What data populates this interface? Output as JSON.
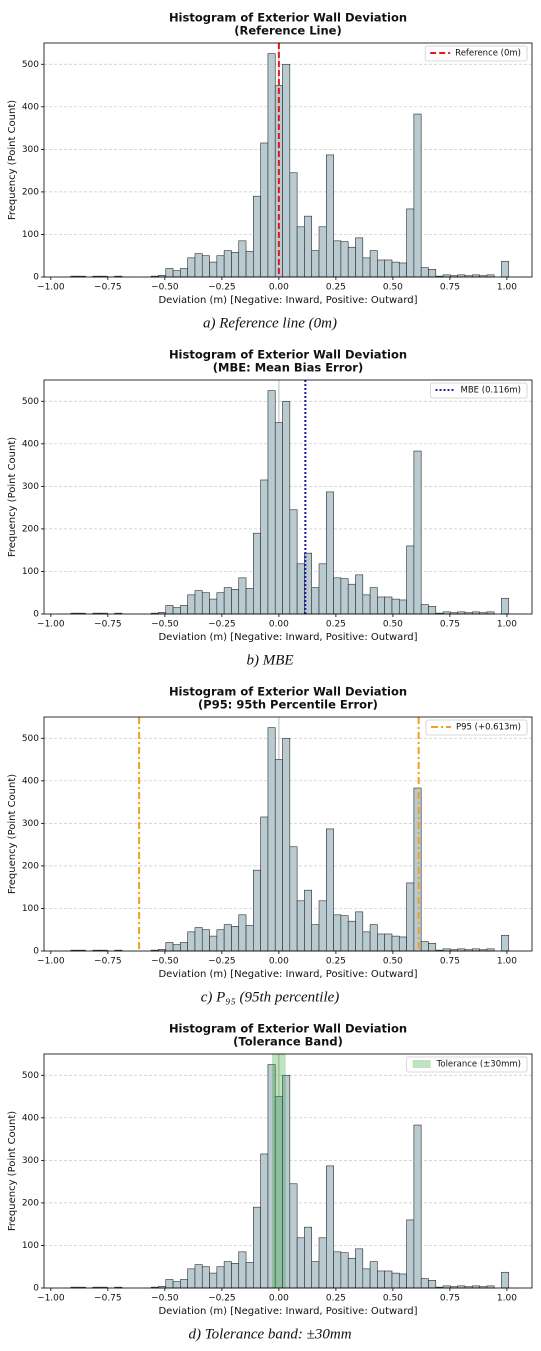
{
  "chart_data": [
    {
      "type": "histogram",
      "title": "Histogram of Exterior Wall Deviation",
      "subtitle": "(Reference Line)",
      "x_label": "Deviation (m) [Negative: Inward, Positive: Outward]",
      "y_label": "Frequency (Point Count)",
      "caption": "a)  Reference  line  (0m)",
      "bins": [
        -0.944,
        -0.912,
        -0.88,
        -0.848,
        -0.816,
        -0.784,
        -0.752,
        -0.72,
        -0.688,
        -0.656,
        -0.624,
        -0.592,
        -0.56,
        -0.528,
        -0.496,
        -0.464,
        -0.432,
        -0.4,
        -0.368,
        -0.336,
        -0.304,
        -0.272,
        -0.24,
        -0.208,
        -0.176,
        -0.144,
        -0.112,
        -0.08,
        -0.048,
        -0.016,
        0.016,
        0.048,
        0.08,
        0.112,
        0.144,
        0.176,
        0.208,
        0.24,
        0.272,
        0.304,
        0.336,
        0.368,
        0.4,
        0.432,
        0.464,
        0.496,
        0.528,
        0.56,
        0.592,
        0.624,
        0.656,
        0.688,
        0.72,
        0.752,
        0.784,
        0.816,
        0.848,
        0.88,
        0.912,
        0.944,
        0.976,
        1.008
      ],
      "values": [
        0,
        2,
        2,
        0,
        2,
        2,
        0,
        2,
        0,
        0,
        0,
        0,
        2,
        4,
        20,
        15,
        20,
        45,
        55,
        50,
        35,
        50,
        62,
        58,
        85,
        60,
        190,
        315,
        525,
        450,
        500,
        245,
        118,
        143,
        62,
        118,
        287,
        85,
        83,
        70,
        92,
        45,
        62,
        40,
        40,
        35,
        33,
        160,
        383,
        22,
        18,
        2,
        5,
        3,
        5,
        3,
        5,
        3,
        5,
        0,
        37
      ],
      "color": "#b9cbd1",
      "zero_line": 0,
      "xlim": [
        -1.03,
        1.11
      ],
      "ylim": [
        0,
        550
      ],
      "xticks": [
        {
          "value": -1,
          "label": "−1.00"
        },
        {
          "value": -0.75,
          "label": "−0.75"
        },
        {
          "value": -0.5,
          "label": "−0.50"
        },
        {
          "value": -0.25,
          "label": "−0.25"
        },
        {
          "value": 0,
          "label": "0.00"
        },
        {
          "value": 0.25,
          "label": "0.25"
        },
        {
          "value": 0.5,
          "label": "0.50"
        },
        {
          "value": 0.75,
          "label": "0.75"
        },
        {
          "value": 1,
          "label": "1.00"
        }
      ],
      "yticks": [
        0,
        100,
        200,
        300,
        400,
        500
      ],
      "grid": "y",
      "legend": "upper right",
      "overlay": {
        "kind": "vline",
        "x": [
          0
        ],
        "label": "Reference (0m)",
        "color": "#e31a1c",
        "dash": "dashed"
      }
    },
    {
      "type": "histogram",
      "title": "Histogram of Exterior Wall Deviation",
      "subtitle": "(MBE: Mean Bias Error)",
      "x_label": "Deviation (m) [Negative: Inward, Positive: Outward]",
      "y_label": "Frequency (Point Count)",
      "caption": "b)  MBE",
      "bins": [
        -0.944,
        -0.912,
        -0.88,
        -0.848,
        -0.816,
        -0.784,
        -0.752,
        -0.72,
        -0.688,
        -0.656,
        -0.624,
        -0.592,
        -0.56,
        -0.528,
        -0.496,
        -0.464,
        -0.432,
        -0.4,
        -0.368,
        -0.336,
        -0.304,
        -0.272,
        -0.24,
        -0.208,
        -0.176,
        -0.144,
        -0.112,
        -0.08,
        -0.048,
        -0.016,
        0.016,
        0.048,
        0.08,
        0.112,
        0.144,
        0.176,
        0.208,
        0.24,
        0.272,
        0.304,
        0.336,
        0.368,
        0.4,
        0.432,
        0.464,
        0.496,
        0.528,
        0.56,
        0.592,
        0.624,
        0.656,
        0.688,
        0.72,
        0.752,
        0.784,
        0.816,
        0.848,
        0.88,
        0.912,
        0.944,
        0.976,
        1.008
      ],
      "values": [
        0,
        2,
        2,
        0,
        2,
        2,
        0,
        2,
        0,
        0,
        0,
        0,
        2,
        4,
        20,
        15,
        20,
        45,
        55,
        50,
        35,
        50,
        62,
        58,
        85,
        60,
        190,
        315,
        525,
        450,
        500,
        245,
        118,
        143,
        62,
        118,
        287,
        85,
        83,
        70,
        92,
        45,
        62,
        40,
        40,
        35,
        33,
        160,
        383,
        22,
        18,
        2,
        5,
        3,
        5,
        3,
        5,
        3,
        5,
        0,
        37
      ],
      "color": "#b9cbd1",
      "zero_line": 0,
      "xlim": [
        -1.03,
        1.11
      ],
      "ylim": [
        0,
        550
      ],
      "xticks": [
        {
          "value": -1,
          "label": "−1.00"
        },
        {
          "value": -0.75,
          "label": "−0.75"
        },
        {
          "value": -0.5,
          "label": "−0.50"
        },
        {
          "value": -0.25,
          "label": "−0.25"
        },
        {
          "value": 0,
          "label": "0.00"
        },
        {
          "value": 0.25,
          "label": "0.25"
        },
        {
          "value": 0.5,
          "label": "0.50"
        },
        {
          "value": 0.75,
          "label": "0.75"
        },
        {
          "value": 1,
          "label": "1.00"
        }
      ],
      "yticks": [
        0,
        100,
        200,
        300,
        400,
        500
      ],
      "grid": "y",
      "legend": "upper right",
      "overlay": {
        "kind": "vline",
        "x": [
          0.116
        ],
        "label": "MBE (0.116m)",
        "color": "#1f1fa8",
        "dash": "dotted"
      }
    },
    {
      "type": "histogram",
      "title": "Histogram of Exterior Wall Deviation",
      "subtitle": "(P95: 95th Percentile Error)",
      "x_label": "Deviation (m) [Negative: Inward, Positive: Outward]",
      "y_label": "Frequency (Point Count)",
      "caption": "c)  P₉₅  (95th  percentile)",
      "bins": [
        -0.944,
        -0.912,
        -0.88,
        -0.848,
        -0.816,
        -0.784,
        -0.752,
        -0.72,
        -0.688,
        -0.656,
        -0.624,
        -0.592,
        -0.56,
        -0.528,
        -0.496,
        -0.464,
        -0.432,
        -0.4,
        -0.368,
        -0.336,
        -0.304,
        -0.272,
        -0.24,
        -0.208,
        -0.176,
        -0.144,
        -0.112,
        -0.08,
        -0.048,
        -0.016,
        0.016,
        0.048,
        0.08,
        0.112,
        0.144,
        0.176,
        0.208,
        0.24,
        0.272,
        0.304,
        0.336,
        0.368,
        0.4,
        0.432,
        0.464,
        0.496,
        0.528,
        0.56,
        0.592,
        0.624,
        0.656,
        0.688,
        0.72,
        0.752,
        0.784,
        0.816,
        0.848,
        0.88,
        0.912,
        0.944,
        0.976,
        1.008
      ],
      "values": [
        0,
        2,
        2,
        0,
        2,
        2,
        0,
        2,
        0,
        0,
        0,
        0,
        2,
        4,
        20,
        15,
        20,
        45,
        55,
        50,
        35,
        50,
        62,
        58,
        85,
        60,
        190,
        315,
        525,
        450,
        500,
        245,
        118,
        143,
        62,
        118,
        287,
        85,
        83,
        70,
        92,
        45,
        62,
        40,
        40,
        35,
        33,
        160,
        383,
        22,
        18,
        2,
        5,
        3,
        5,
        3,
        5,
        3,
        5,
        0,
        37
      ],
      "color": "#b9cbd1",
      "zero_line": 0,
      "xlim": [
        -1.03,
        1.11
      ],
      "ylim": [
        0,
        550
      ],
      "xticks": [
        {
          "value": -1,
          "label": "−1.00"
        },
        {
          "value": -0.75,
          "label": "−0.75"
        },
        {
          "value": -0.5,
          "label": "−0.50"
        },
        {
          "value": -0.25,
          "label": "−0.25"
        },
        {
          "value": 0,
          "label": "0.00"
        },
        {
          "value": 0.25,
          "label": "0.25"
        },
        {
          "value": 0.5,
          "label": "0.50"
        },
        {
          "value": 0.75,
          "label": "0.75"
        },
        {
          "value": 1,
          "label": "1.00"
        }
      ],
      "yticks": [
        0,
        100,
        200,
        300,
        400,
        500
      ],
      "grid": "y",
      "legend": "upper right",
      "overlay": {
        "kind": "vline",
        "x": [
          -0.613,
          0.613
        ],
        "label": "P95 (+0.613m)",
        "color": "#f0a020",
        "dash": "dashdot"
      }
    },
    {
      "type": "histogram",
      "title": "Histogram of Exterior Wall Deviation",
      "subtitle": "(Tolerance Band)",
      "x_label": "Deviation (m) [Negative: Inward, Positive: Outward]",
      "y_label": "Frequency (Point Count)",
      "caption": "d)  Tolerance  band:  ±30mm",
      "bins": [
        -0.944,
        -0.912,
        -0.88,
        -0.848,
        -0.816,
        -0.784,
        -0.752,
        -0.72,
        -0.688,
        -0.656,
        -0.624,
        -0.592,
        -0.56,
        -0.528,
        -0.496,
        -0.464,
        -0.432,
        -0.4,
        -0.368,
        -0.336,
        -0.304,
        -0.272,
        -0.24,
        -0.208,
        -0.176,
        -0.144,
        -0.112,
        -0.08,
        -0.048,
        -0.016,
        0.016,
        0.048,
        0.08,
        0.112,
        0.144,
        0.176,
        0.208,
        0.24,
        0.272,
        0.304,
        0.336,
        0.368,
        0.4,
        0.432,
        0.464,
        0.496,
        0.528,
        0.56,
        0.592,
        0.624,
        0.656,
        0.688,
        0.72,
        0.752,
        0.784,
        0.816,
        0.848,
        0.88,
        0.912,
        0.944,
        0.976,
        1.008
      ],
      "values": [
        0,
        2,
        2,
        0,
        2,
        2,
        0,
        2,
        0,
        0,
        0,
        0,
        2,
        4,
        20,
        15,
        20,
        45,
        55,
        50,
        35,
        50,
        62,
        58,
        85,
        60,
        190,
        315,
        525,
        450,
        500,
        245,
        118,
        143,
        62,
        118,
        287,
        85,
        83,
        70,
        92,
        45,
        62,
        40,
        40,
        35,
        33,
        160,
        383,
        22,
        18,
        2,
        5,
        3,
        5,
        3,
        5,
        3,
        5,
        0,
        37
      ],
      "color": "#b9cbd1",
      "zero_line": 0,
      "xlim": [
        -1.03,
        1.11
      ],
      "ylim": [
        0,
        550
      ],
      "xticks": [
        {
          "value": -1,
          "label": "−1.00"
        },
        {
          "value": -0.75,
          "label": "−0.75"
        },
        {
          "value": -0.5,
          "label": "−0.50"
        },
        {
          "value": -0.25,
          "label": "−0.25"
        },
        {
          "value": 0,
          "label": "0.00"
        },
        {
          "value": 0.25,
          "label": "0.25"
        },
        {
          "value": 0.5,
          "label": "0.50"
        },
        {
          "value": 0.75,
          "label": "0.75"
        },
        {
          "value": 1,
          "label": "1.00"
        }
      ],
      "yticks": [
        0,
        100,
        200,
        300,
        400,
        500
      ],
      "grid": "y",
      "legend": "upper right",
      "overlay": {
        "kind": "span",
        "x": [
          -0.03,
          0.03
        ],
        "label": "Tolerance (±30mm)",
        "color": "#2ca02c"
      }
    }
  ]
}
